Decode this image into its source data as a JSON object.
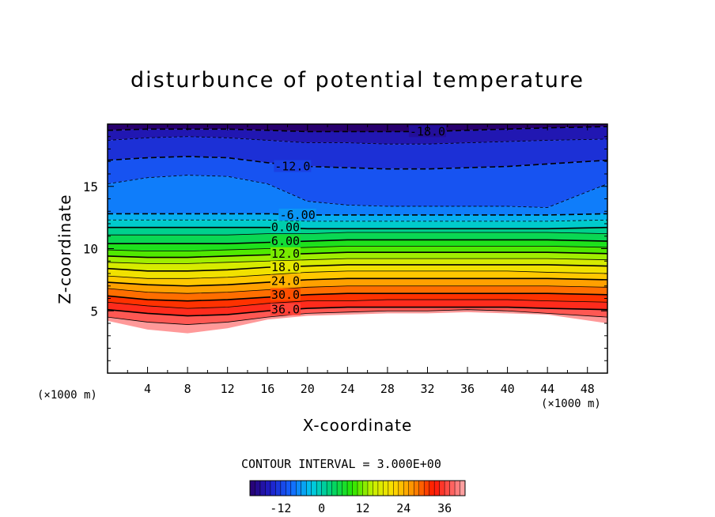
{
  "chart_data": {
    "type": "heatmap",
    "title": "disturbunce of potential temperature",
    "xlabel": "X-coordinate",
    "ylabel": "Z-coordinate",
    "x_unit_label": "(×1000 m)",
    "x_ticks": [
      "4",
      "8",
      "12",
      "16",
      "20",
      "24",
      "28",
      "32",
      "36",
      "40",
      "44",
      "48"
    ],
    "y_ticks": [
      "5",
      "10",
      "15"
    ],
    "xlim": [
      0,
      50
    ],
    "ylim": [
      0,
      20
    ],
    "contour_interval_label": "CONTOUR INTERVAL = 3.000E+00",
    "contour_interval": 3.0,
    "contour_labels": [
      {
        "text": "-18.0",
        "x": 32,
        "z": 19.4
      },
      {
        "text": "-12.0",
        "x": 18.5,
        "z": 16.6
      },
      {
        "text": "-6.00",
        "x": 19,
        "z": 12.7
      },
      {
        "text": "0.00",
        "x": 17.8,
        "z": 11.7
      },
      {
        "text": "6.00",
        "x": 17.8,
        "z": 10.6
      },
      {
        "text": "12.0",
        "x": 17.8,
        "z": 9.6
      },
      {
        "text": "18.0",
        "x": 17.8,
        "z": 8.5
      },
      {
        "text": "24.0",
        "x": 17.8,
        "z": 7.4
      },
      {
        "text": "30.0",
        "x": 17.8,
        "z": 6.3
      },
      {
        "text": "36.0",
        "x": 17.8,
        "z": 5.1
      }
    ],
    "levels_y": [
      {
        "value": -18,
        "z": [
          19.5,
          19.6,
          19.6,
          19.6,
          19.5,
          19.4,
          19.4,
          19.4,
          19.4,
          19.5,
          19.6,
          19.7,
          19.8
        ]
      },
      {
        "value": -15,
        "z": [
          18.7,
          18.9,
          19.0,
          18.9,
          18.7,
          18.5,
          18.5,
          18.4,
          18.4,
          18.5,
          18.6,
          18.7,
          18.8
        ]
      },
      {
        "value": -12,
        "z": [
          17.1,
          17.3,
          17.4,
          17.3,
          16.9,
          16.6,
          16.5,
          16.4,
          16.4,
          16.5,
          16.6,
          16.8,
          17.1
        ]
      },
      {
        "value": -9,
        "z": [
          15.2,
          15.7,
          15.9,
          15.8,
          15.2,
          13.8,
          13.5,
          13.4,
          13.4,
          13.4,
          13.4,
          13.3,
          15.2
        ]
      },
      {
        "value": -6,
        "z": [
          12.8,
          12.8,
          12.8,
          12.8,
          12.8,
          12.7,
          12.7,
          12.7,
          12.7,
          12.7,
          12.7,
          12.7,
          12.8
        ]
      },
      {
        "value": -3,
        "z": [
          12.3,
          12.3,
          12.3,
          12.3,
          12.3,
          12.2,
          12.2,
          12.2,
          12.2,
          12.2,
          12.2,
          12.2,
          12.3
        ]
      },
      {
        "value": 0,
        "z": [
          11.7,
          11.7,
          11.7,
          11.7,
          11.7,
          11.6,
          11.6,
          11.6,
          11.6,
          11.6,
          11.6,
          11.6,
          11.7
        ]
      },
      {
        "value": 3,
        "z": [
          11.1,
          11.1,
          11.1,
          11.1,
          11.2,
          11.2,
          11.3,
          11.3,
          11.3,
          11.3,
          11.3,
          11.3,
          11.2
        ]
      },
      {
        "value": 6,
        "z": [
          10.4,
          10.4,
          10.4,
          10.4,
          10.5,
          10.6,
          10.7,
          10.7,
          10.7,
          10.7,
          10.7,
          10.7,
          10.6
        ]
      },
      {
        "value": 9,
        "z": [
          9.9,
          9.8,
          9.8,
          9.9,
          10.0,
          10.1,
          10.2,
          10.2,
          10.2,
          10.2,
          10.2,
          10.2,
          10.1
        ]
      },
      {
        "value": 12,
        "z": [
          9.4,
          9.3,
          9.3,
          9.4,
          9.5,
          9.6,
          9.7,
          9.7,
          9.7,
          9.7,
          9.7,
          9.7,
          9.6
        ]
      },
      {
        "value": 15,
        "z": [
          8.9,
          8.8,
          8.8,
          8.9,
          9.0,
          9.1,
          9.2,
          9.2,
          9.2,
          9.2,
          9.2,
          9.2,
          9.1
        ]
      },
      {
        "value": 18,
        "z": [
          8.4,
          8.2,
          8.2,
          8.3,
          8.5,
          8.6,
          8.7,
          8.7,
          8.7,
          8.7,
          8.7,
          8.7,
          8.6
        ]
      },
      {
        "value": 21,
        "z": [
          7.8,
          7.6,
          7.6,
          7.7,
          7.9,
          8.1,
          8.2,
          8.2,
          8.2,
          8.2,
          8.2,
          8.1,
          8.0
        ]
      },
      {
        "value": 24,
        "z": [
          7.3,
          7.1,
          7.0,
          7.1,
          7.3,
          7.5,
          7.6,
          7.6,
          7.6,
          7.6,
          7.6,
          7.6,
          7.5
        ]
      },
      {
        "value": 27,
        "z": [
          6.8,
          6.5,
          6.4,
          6.5,
          6.7,
          6.9,
          7.0,
          7.0,
          7.0,
          7.0,
          7.0,
          7.0,
          6.9
        ]
      },
      {
        "value": 30,
        "z": [
          6.2,
          5.9,
          5.8,
          5.9,
          6.1,
          6.3,
          6.4,
          6.4,
          6.4,
          6.4,
          6.4,
          6.4,
          6.3
        ]
      },
      {
        "value": 33,
        "z": [
          5.7,
          5.4,
          5.2,
          5.3,
          5.6,
          5.8,
          5.8,
          5.9,
          5.9,
          5.9,
          5.9,
          5.8,
          5.7
        ]
      },
      {
        "value": 36,
        "z": [
          5.1,
          4.8,
          4.6,
          4.7,
          5.0,
          5.2,
          5.3,
          5.3,
          5.3,
          5.3,
          5.3,
          5.2,
          5.1
        ]
      },
      {
        "value": 39,
        "z": [
          4.5,
          4.1,
          3.9,
          4.1,
          4.5,
          4.8,
          4.9,
          5.0,
          5.0,
          5.1,
          5.0,
          4.8,
          4.5
        ]
      }
    ],
    "level_x": [
      0,
      4,
      8,
      12,
      16,
      20,
      24,
      28,
      32,
      36,
      40,
      44,
      50
    ],
    "lower_boundary_z": [
      4.2,
      3.5,
      3.2,
      3.6,
      4.3,
      4.6,
      4.7,
      4.8,
      4.8,
      4.9,
      4.8,
      4.7,
      4.0
    ],
    "colorbar": {
      "ticks": [
        "-12",
        "0",
        "12",
        "24",
        "36"
      ],
      "min": -21,
      "max": 42
    }
  }
}
